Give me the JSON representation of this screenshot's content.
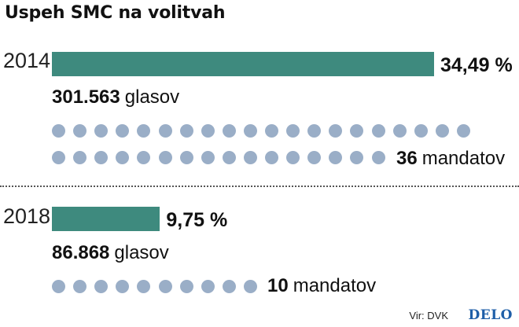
{
  "chart_data": {
    "type": "bar",
    "title": "Uspeh SMC na volitvah",
    "categories": [
      "2014",
      "2018"
    ],
    "series": [
      {
        "values": [
          34.49,
          9.75
        ],
        "labels": [
          "34,49 %",
          "9,75 %"
        ]
      }
    ],
    "votes": [
      {
        "number": "301.563",
        "unit": "glasov"
      },
      {
        "number": "86.868",
        "unit": "glasov"
      }
    ],
    "seats": [
      {
        "count": 36,
        "number": "36",
        "unit": "mandatov"
      },
      {
        "count": 10,
        "number": "10",
        "unit": "mandatov"
      }
    ],
    "source": "Vir: DVK",
    "logo": "DELO",
    "colors": {
      "bar": "#3e8a7e",
      "dot": "#9aaec7",
      "logo": "#1f5fa8"
    }
  }
}
